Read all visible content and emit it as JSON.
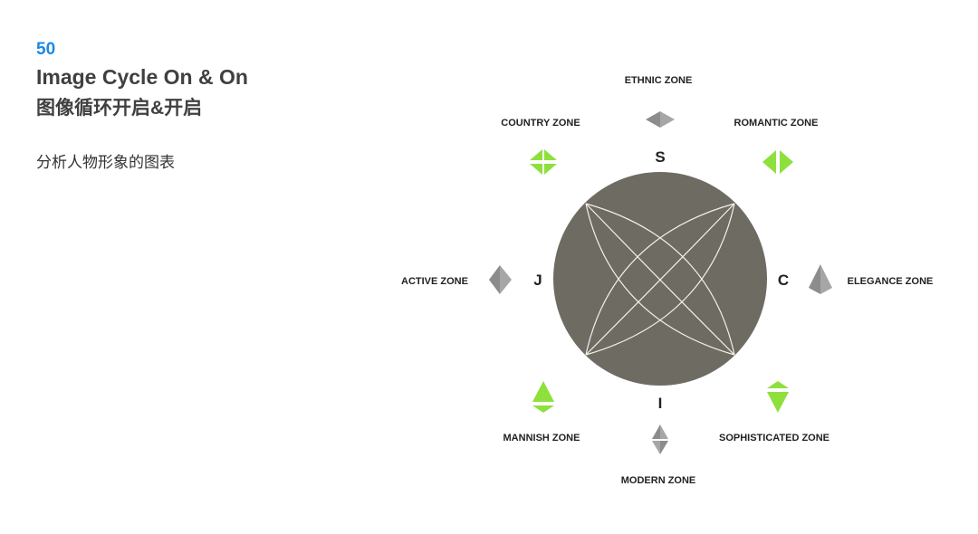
{
  "header": {
    "page_number": "50",
    "title_en": "Image Cycle On & On",
    "title_cn": "图像循环开启&开启",
    "subtitle": "分析人物形象的图表"
  },
  "diagram": {
    "axes": {
      "top": "S",
      "bottom": "I",
      "left": "J",
      "right": "C"
    },
    "zones": {
      "ethnic": "ETHNIC ZONE",
      "country": "COUNTRY ZONE",
      "romantic": "ROMANTIC ZONE",
      "active": "ACTIVE ZONE",
      "elegance": "ELEGANCE ZONE",
      "mannish": "MANNISH ZONE",
      "sophisticated": "SOPHISTICATED ZONE",
      "modern": "MODERN ZONE"
    },
    "colors": {
      "circle": "#6e6b63",
      "accent_green": "#8ee03c",
      "neutral_gray": "#8c8c8c",
      "title_blue": "#1e88e5"
    }
  }
}
